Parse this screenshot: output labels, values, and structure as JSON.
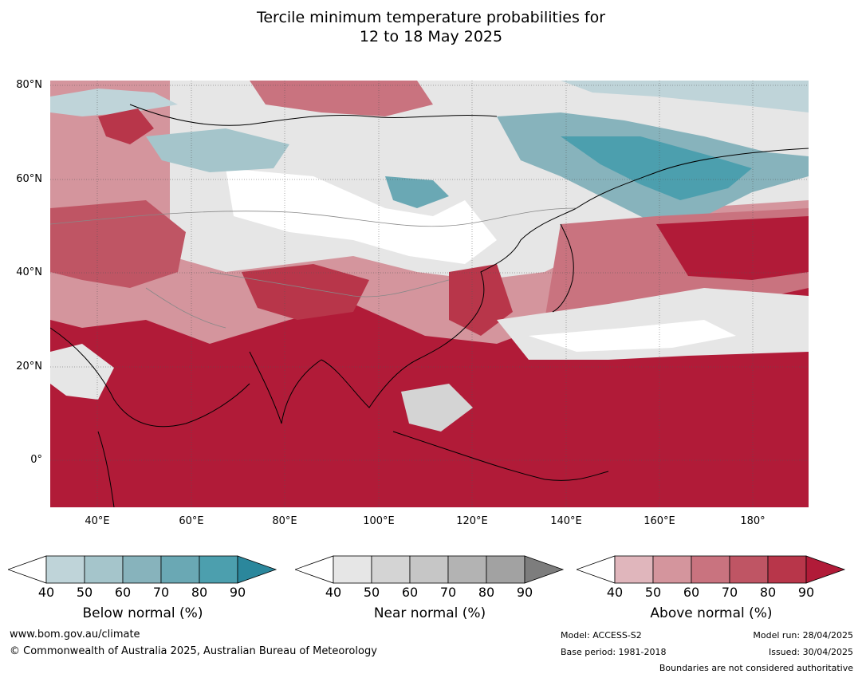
{
  "title_line1": "Tercile minimum temperature probabilities for",
  "title_line2": "12 to 18 May 2025",
  "map": {
    "lat_labels": [
      "80°N",
      "60°N",
      "40°N",
      "20°N",
      "0°"
    ],
    "lon_labels": [
      "40°E",
      "60°E",
      "80°E",
      "100°E",
      "120°E",
      "140°E",
      "160°E",
      "180°"
    ],
    "colors": {
      "above": [
        "#ffffff",
        "#e0b6bc",
        "#d4959d",
        "#c9737f",
        "#bf5564",
        "#b8364a",
        "#b11b38"
      ],
      "near": [
        "#ffffff",
        "#e6e6e6",
        "#d4d4d4",
        "#c6c6c6",
        "#b3b3b3",
        "#a2a2a2",
        "#7d7d7d"
      ],
      "below": [
        "#ffffff",
        "#bfd4d9",
        "#a5c5cb",
        "#87b3bc",
        "#6aa8b4",
        "#4c9fae",
        "#2b879c"
      ]
    }
  },
  "colorbars": [
    {
      "label": "Below normal (%)",
      "ticks": [
        "40",
        "50",
        "60",
        "70",
        "80",
        "90"
      ]
    },
    {
      "label": "Near normal (%)",
      "ticks": [
        "40",
        "50",
        "60",
        "70",
        "80",
        "90"
      ]
    },
    {
      "label": "Above normal (%)",
      "ticks": [
        "40",
        "50",
        "60",
        "70",
        "80",
        "90"
      ]
    }
  ],
  "footer": {
    "website": "www.bom.gov.au/climate",
    "copyright": "© Commonwealth of Australia 2025, Australian Bureau of Meteorology",
    "model": "Model: ACCESS-S2",
    "base_period": "Base period: 1981-2018",
    "model_run": "Model run: 28/04/2025",
    "issued": "Issued: 30/04/2025",
    "disclaimer": "Boundaries are not considered authoritative"
  }
}
